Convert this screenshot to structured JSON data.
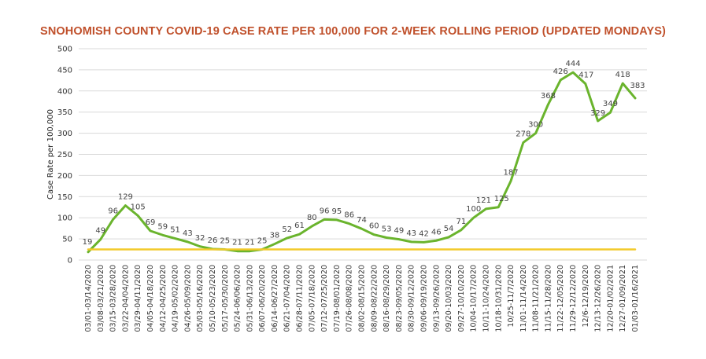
{
  "chart_data": {
    "type": "line",
    "title": "SNOHOMISH COUNTY COVID-19 CASE RATE PER 100,000 FOR 2-WEEK ROLLING PERIOD (UPDATED MONDAYS)",
    "xlabel": "",
    "ylabel": "Case Rate per 100,000",
    "ylim": [
      0,
      500
    ],
    "yticks": [
      0,
      50,
      100,
      150,
      200,
      250,
      300,
      350,
      400,
      450,
      500
    ],
    "grid": true,
    "categories": [
      "03/01-03/14/2020",
      "03/08-03/21/2020",
      "03/15-03/28/2020",
      "03/22-04/04/2020",
      "03/29-04/11/2020",
      "04/05-04/18/2020",
      "04/12-04/25/2020",
      "04/19-05/02/2020",
      "04/26-05/09/2020",
      "05/03-05/16/2020",
      "05/10-05/23/2020",
      "05/17-05/30/2020",
      "05/24-06/06/2020",
      "05/31-06/13/2020",
      "06/07-06/20/2020",
      "06/14-06/27/2020",
      "06/21-07/04/2020",
      "06/28-07/11/2020",
      "07/05-07/18/2020",
      "07/12-07/25/2020",
      "07/19-08/01/2020",
      "07/26-08/08/2020",
      "08/02-08/15/2020",
      "08/09-08/22/2020",
      "08/16-08/29/2020",
      "08/23-09/05/2020",
      "08/30-09/12/2020",
      "09/06-09/19/2020",
      "09/13-09/26/2020",
      "09/20-10/03/2020",
      "09/27-10/10/2020",
      "10/04-10/17/2020",
      "10/11-10/24/2020",
      "10/18-10/31/2020",
      "10/25-11/7/2020",
      "11/01-11/14/2020",
      "11/08-11/21/2020",
      "11/15-11/28/2020",
      "11/22-12/05/2020",
      "11/29-12/12/2020",
      "12/6-12/19/2020",
      "12/13-12/26/2020",
      "12/20-01/02/2021",
      "12/27-01/09/2021",
      "01/03-01/16/2021"
    ],
    "series": [
      {
        "values": [
          19,
          49,
          96,
          129,
          105,
          69,
          59,
          51,
          43,
          32,
          26,
          25,
          21,
          21,
          25,
          38,
          52,
          61,
          80,
          96,
          95,
          86,
          74,
          60,
          53,
          49,
          43,
          42,
          46,
          54,
          71,
          100,
          121,
          125,
          187,
          278,
          300,
          368,
          426,
          444,
          417,
          329,
          349,
          418,
          383
        ],
        "color": "#6ab42d"
      },
      {
        "values": [
          25,
          25,
          25,
          25,
          25,
          25,
          25,
          25,
          25,
          25,
          25,
          25,
          25,
          25,
          25,
          25,
          25,
          25,
          25,
          25,
          25,
          25,
          25,
          25,
          25,
          25,
          25,
          25,
          25,
          25,
          25,
          25,
          25,
          25,
          25,
          25,
          25,
          25,
          25,
          25,
          25,
          25,
          25,
          25,
          25
        ],
        "color": "#f3ca2a"
      }
    ],
    "data_labels": [
      "19",
      "49",
      "96",
      "129",
      "105",
      "69",
      "59",
      "51",
      "43",
      "32",
      "26",
      "25",
      "21",
      "21",
      "25",
      "38",
      "52",
      "61",
      "80",
      "96",
      "95",
      "86",
      "74",
      "60",
      "53",
      "49",
      "43",
      "42",
      "46",
      "54",
      "71",
      "100",
      "121",
      "125",
      "187",
      "278",
      "300",
      "368",
      "426",
      "444",
      "417",
      "329",
      "349",
      "418",
      "383"
    ],
    "grid_color": "#d9d9d9"
  }
}
